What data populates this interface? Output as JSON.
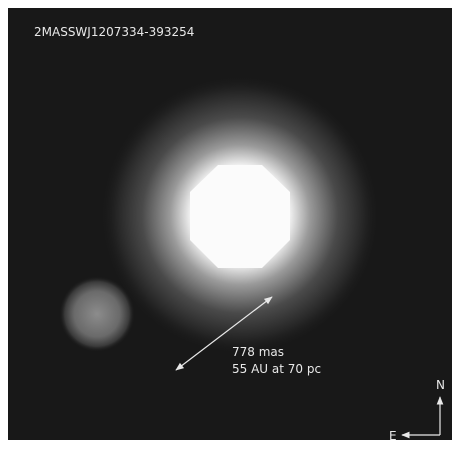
{
  "image": {
    "title": "2MASSWJ1207334-393254",
    "separation": "778 mas",
    "distance": "55 AU at 70 pc",
    "compass": {
      "north": "N",
      "east": "E"
    }
  }
}
